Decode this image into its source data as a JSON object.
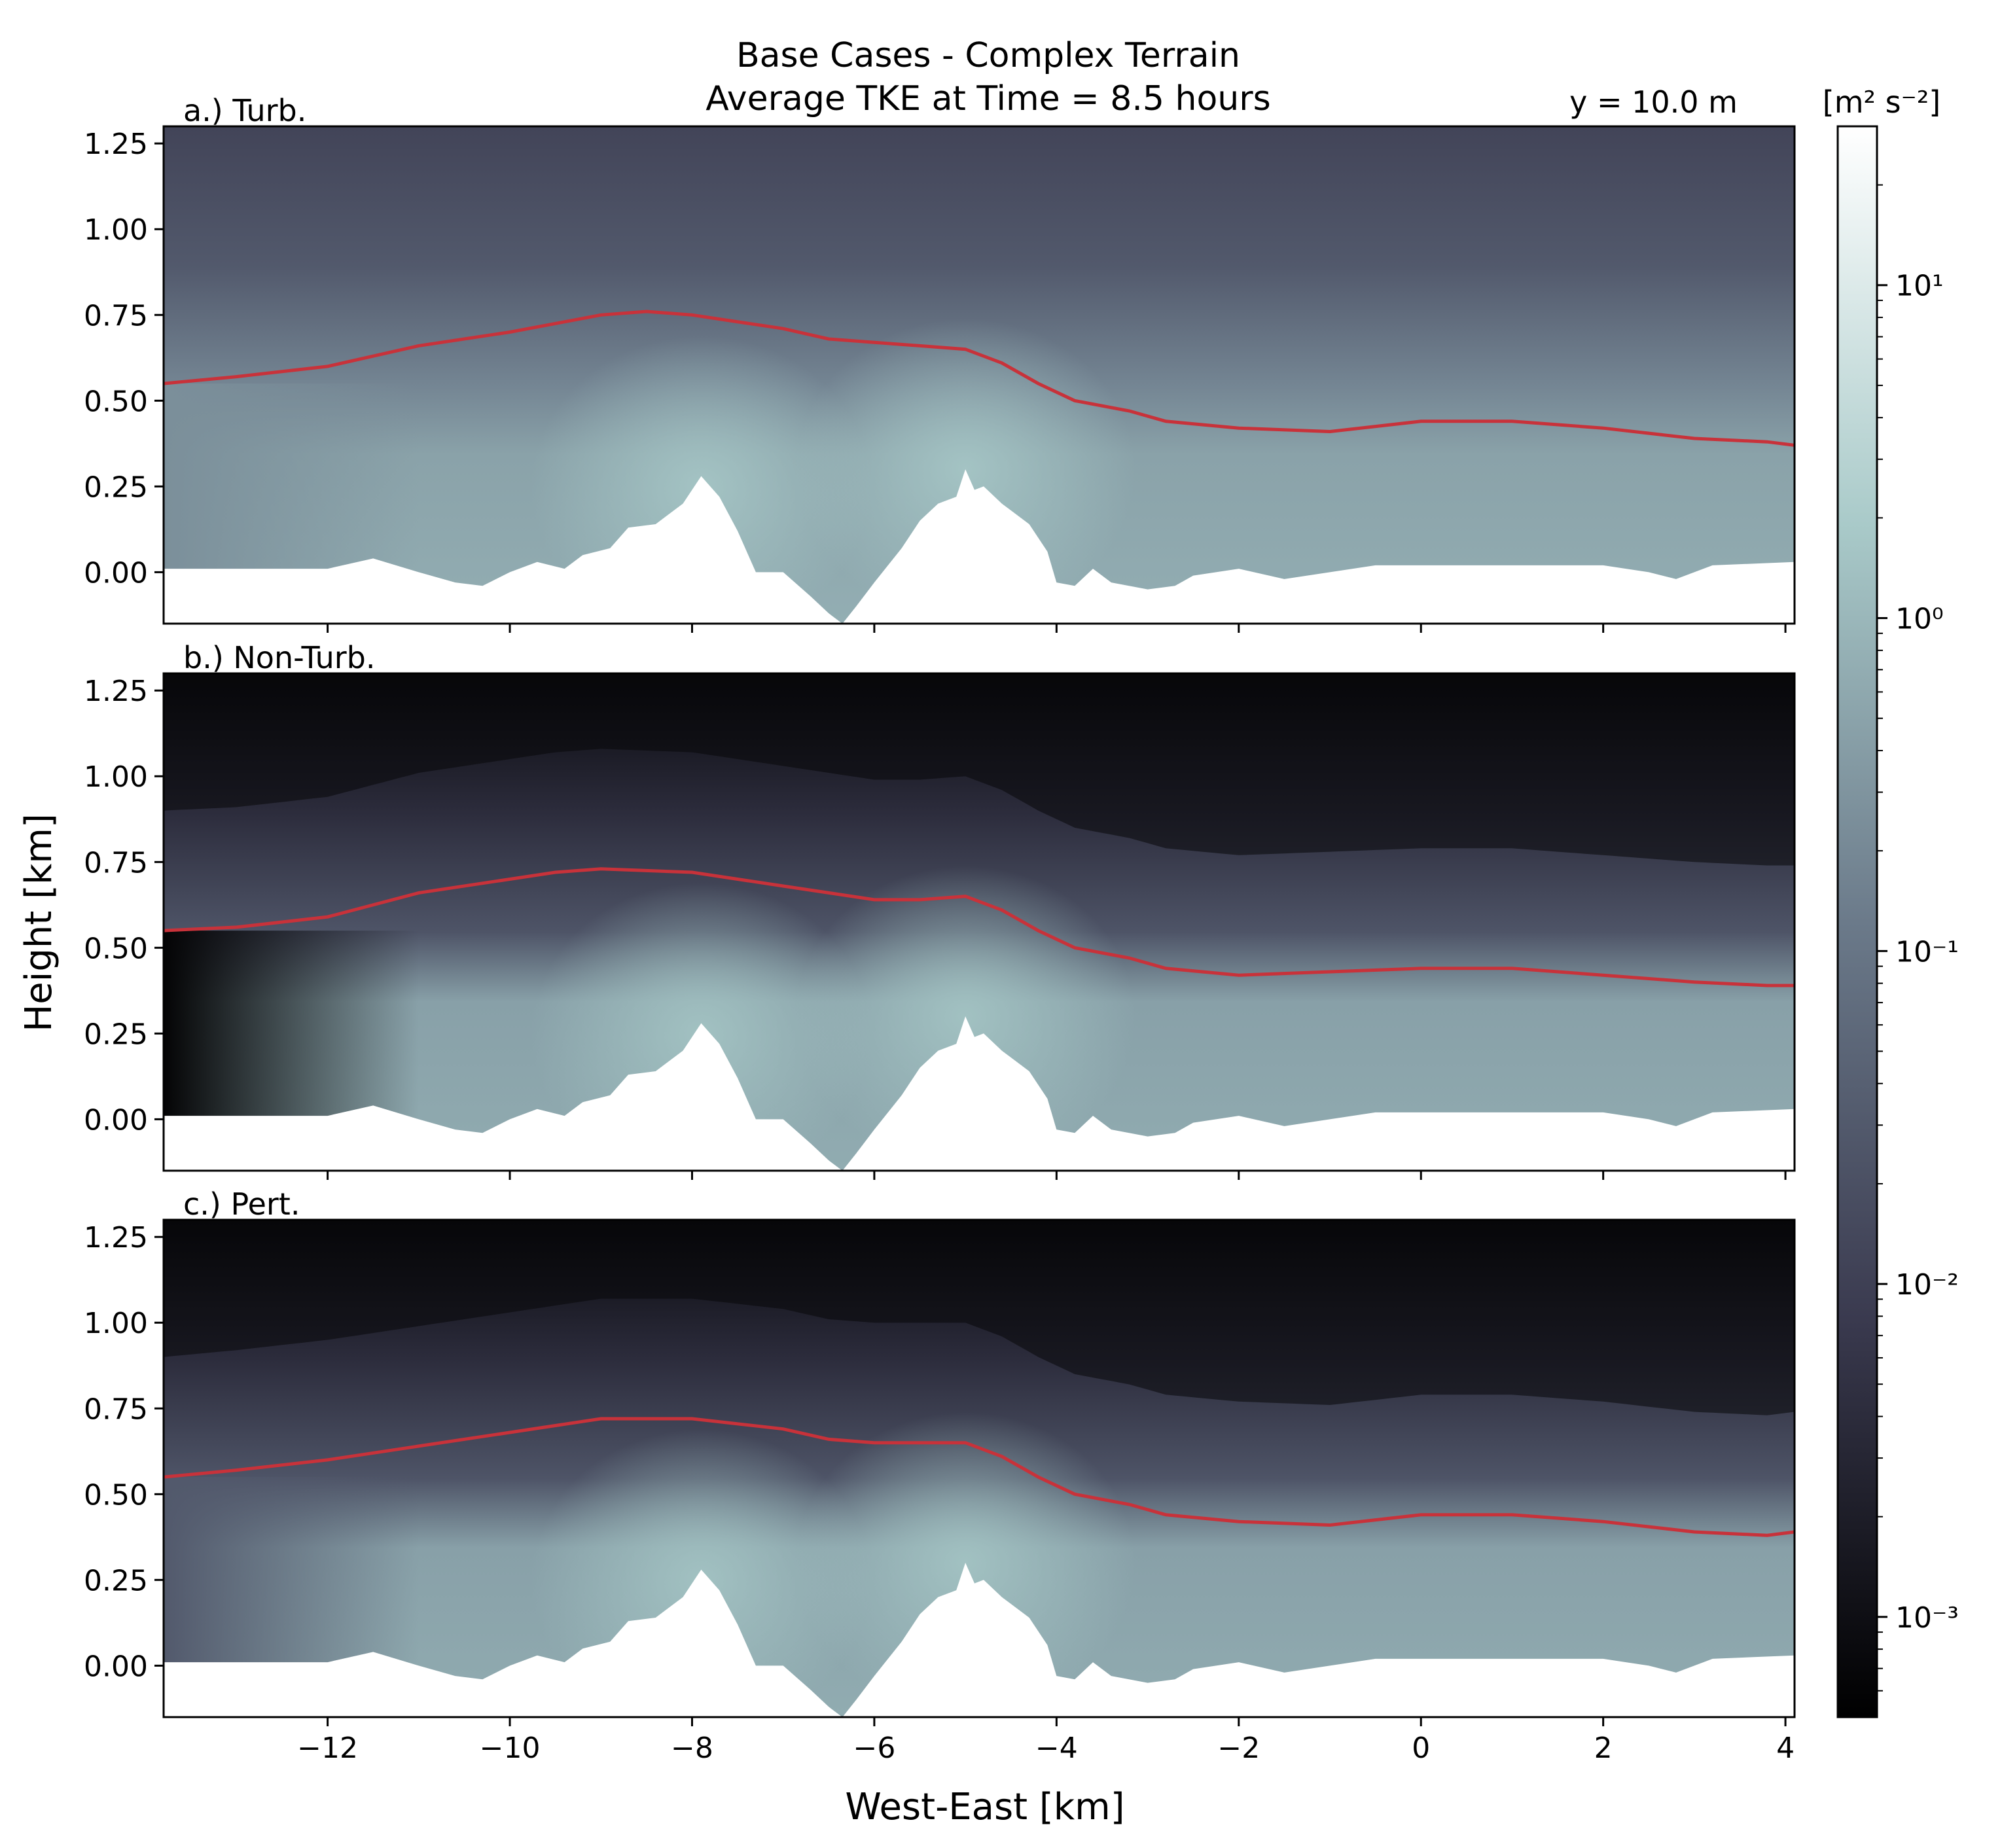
{
  "figure": {
    "title_line1": "Base Cases - Complex Terrain",
    "title_line2": "Average TKE at Time = 8.5 hours",
    "y_annotation": "y = 10.0 m",
    "xlabel": "West-East [km]",
    "ylabel": "Height [km]"
  },
  "colorbar": {
    "unit_label": "[m² s⁻²]",
    "scale": "log",
    "range": [
      0.0005,
      30
    ],
    "ticks": [
      {
        "value": 10,
        "label": "10¹"
      },
      {
        "value": 1,
        "label": "10⁰"
      },
      {
        "value": 0.1,
        "label": "10⁻¹"
      },
      {
        "value": 0.01,
        "label": "10⁻²"
      },
      {
        "value": 0.001,
        "label": "10⁻³"
      }
    ],
    "colormap": "bone",
    "colors": [
      "#000000",
      "#3a3a4f",
      "#6b7a8a",
      "#a9cac9",
      "#ffffff"
    ]
  },
  "chart_data": {
    "type": "heatmap",
    "xlim": [
      -13.8,
      4.1
    ],
    "ylim": [
      -0.15,
      1.3
    ],
    "x_ticks": [
      {
        "value": -12,
        "label": "−12"
      },
      {
        "value": -10,
        "label": "−10"
      },
      {
        "value": -8,
        "label": "−8"
      },
      {
        "value": -6,
        "label": "−6"
      },
      {
        "value": -4,
        "label": "−4"
      },
      {
        "value": -2,
        "label": "−2"
      },
      {
        "value": 0,
        "label": "0"
      },
      {
        "value": 2,
        "label": "2"
      },
      {
        "value": 4,
        "label": "4"
      }
    ],
    "y_ticks": [
      {
        "value": 0.0,
        "label": "0.00"
      },
      {
        "value": 0.25,
        "label": "0.25"
      },
      {
        "value": 0.5,
        "label": "0.50"
      },
      {
        "value": 0.75,
        "label": "0.75"
      },
      {
        "value": 1.0,
        "label": "1.00"
      },
      {
        "value": 1.25,
        "label": "1.25"
      }
    ],
    "terrain": [
      [
        -13.8,
        0.01
      ],
      [
        -12.0,
        0.01
      ],
      [
        -11.5,
        0.04
      ],
      [
        -11.0,
        0.0
      ],
      [
        -10.6,
        -0.03
      ],
      [
        -10.3,
        -0.04
      ],
      [
        -10.0,
        0.0
      ],
      [
        -9.7,
        0.03
      ],
      [
        -9.4,
        0.01
      ],
      [
        -9.2,
        0.05
      ],
      [
        -8.9,
        0.07
      ],
      [
        -8.7,
        0.13
      ],
      [
        -8.4,
        0.14
      ],
      [
        -8.1,
        0.2
      ],
      [
        -7.9,
        0.28
      ],
      [
        -7.7,
        0.22
      ],
      [
        -7.5,
        0.12
      ],
      [
        -7.3,
        0.0
      ],
      [
        -7.0,
        0.0
      ],
      [
        -6.7,
        -0.07
      ],
      [
        -6.5,
        -0.12
      ],
      [
        -6.35,
        -0.15
      ],
      [
        -6.2,
        -0.1
      ],
      [
        -6.0,
        -0.03
      ],
      [
        -5.7,
        0.07
      ],
      [
        -5.5,
        0.15
      ],
      [
        -5.3,
        0.2
      ],
      [
        -5.1,
        0.22
      ],
      [
        -5.0,
        0.3
      ],
      [
        -4.9,
        0.24
      ],
      [
        -4.8,
        0.25
      ],
      [
        -4.6,
        0.2
      ],
      [
        -4.5,
        0.18
      ],
      [
        -4.3,
        0.14
      ],
      [
        -4.1,
        0.06
      ],
      [
        -4.0,
        -0.03
      ],
      [
        -3.8,
        -0.04
      ],
      [
        -3.6,
        0.01
      ],
      [
        -3.4,
        -0.03
      ],
      [
        -3.0,
        -0.05
      ],
      [
        -2.7,
        -0.04
      ],
      [
        -2.5,
        -0.01
      ],
      [
        -2.0,
        0.01
      ],
      [
        -1.5,
        -0.02
      ],
      [
        -1.0,
        0.0
      ],
      [
        -0.5,
        0.02
      ],
      [
        0.0,
        0.02
      ],
      [
        1.0,
        0.02
      ],
      [
        2.0,
        0.02
      ],
      [
        2.5,
        0.0
      ],
      [
        2.8,
        -0.02
      ],
      [
        3.2,
        0.02
      ],
      [
        4.1,
        0.03
      ]
    ],
    "panels": [
      {
        "label": "a.) Turb.",
        "tke_top": 0.012,
        "tke_mid": 0.03,
        "tke_inflow_bottom": 0.25,
        "tke_peak": 1.6,
        "boundary_layer_height": [
          [
            -13.8,
            0.55
          ],
          [
            -13.0,
            0.57
          ],
          [
            -12.0,
            0.6
          ],
          [
            -11.0,
            0.66
          ],
          [
            -10.0,
            0.7
          ],
          [
            -9.0,
            0.75
          ],
          [
            -8.5,
            0.76
          ],
          [
            -8.0,
            0.75
          ],
          [
            -7.0,
            0.71
          ],
          [
            -6.5,
            0.68
          ],
          [
            -6.0,
            0.67
          ],
          [
            -5.5,
            0.66
          ],
          [
            -5.0,
            0.65
          ],
          [
            -4.6,
            0.61
          ],
          [
            -4.2,
            0.55
          ],
          [
            -3.8,
            0.5
          ],
          [
            -3.2,
            0.47
          ],
          [
            -2.8,
            0.44
          ],
          [
            -2.0,
            0.42
          ],
          [
            -1.0,
            0.41
          ],
          [
            0.0,
            0.44
          ],
          [
            1.0,
            0.44
          ],
          [
            2.0,
            0.42
          ],
          [
            3.0,
            0.39
          ],
          [
            3.8,
            0.38
          ],
          [
            4.1,
            0.37
          ]
        ]
      },
      {
        "label": "b.) Non-Turb.",
        "tke_top": 0.0007,
        "tke_mid": 0.004,
        "tke_inflow_bottom": 0.0006,
        "tke_peak": 1.5,
        "boundary_layer_height": [
          [
            -13.8,
            0.55
          ],
          [
            -13.0,
            0.56
          ],
          [
            -12.0,
            0.59
          ],
          [
            -11.0,
            0.66
          ],
          [
            -10.0,
            0.7
          ],
          [
            -9.5,
            0.72
          ],
          [
            -9.0,
            0.73
          ],
          [
            -8.0,
            0.72
          ],
          [
            -7.0,
            0.68
          ],
          [
            -6.5,
            0.66
          ],
          [
            -6.0,
            0.64
          ],
          [
            -5.5,
            0.64
          ],
          [
            -5.0,
            0.65
          ],
          [
            -4.6,
            0.61
          ],
          [
            -4.2,
            0.55
          ],
          [
            -3.8,
            0.5
          ],
          [
            -3.2,
            0.47
          ],
          [
            -2.8,
            0.44
          ],
          [
            -2.0,
            0.42
          ],
          [
            -1.0,
            0.43
          ],
          [
            0.0,
            0.44
          ],
          [
            1.0,
            0.44
          ],
          [
            2.0,
            0.42
          ],
          [
            3.0,
            0.4
          ],
          [
            3.8,
            0.39
          ],
          [
            4.1,
            0.39
          ]
        ]
      },
      {
        "label": "c.) Pert.",
        "tke_top": 0.0007,
        "tke_mid": 0.004,
        "tke_inflow_bottom": 0.03,
        "tke_peak": 1.5,
        "boundary_layer_height": [
          [
            -13.8,
            0.55
          ],
          [
            -13.0,
            0.57
          ],
          [
            -12.0,
            0.6
          ],
          [
            -11.0,
            0.64
          ],
          [
            -10.0,
            0.68
          ],
          [
            -9.5,
            0.7
          ],
          [
            -9.0,
            0.72
          ],
          [
            -8.0,
            0.72
          ],
          [
            -7.0,
            0.69
          ],
          [
            -6.5,
            0.66
          ],
          [
            -6.0,
            0.65
          ],
          [
            -5.5,
            0.65
          ],
          [
            -5.0,
            0.65
          ],
          [
            -4.6,
            0.61
          ],
          [
            -4.2,
            0.55
          ],
          [
            -3.8,
            0.5
          ],
          [
            -3.2,
            0.47
          ],
          [
            -2.8,
            0.44
          ],
          [
            -2.0,
            0.42
          ],
          [
            -1.0,
            0.41
          ],
          [
            0.0,
            0.44
          ],
          [
            1.0,
            0.44
          ],
          [
            2.0,
            0.42
          ],
          [
            3.0,
            0.39
          ],
          [
            3.8,
            0.38
          ],
          [
            4.1,
            0.39
          ]
        ]
      }
    ]
  },
  "style": {
    "bl_line_color": "#c8323a",
    "terrain_fill": "#ffffff"
  }
}
